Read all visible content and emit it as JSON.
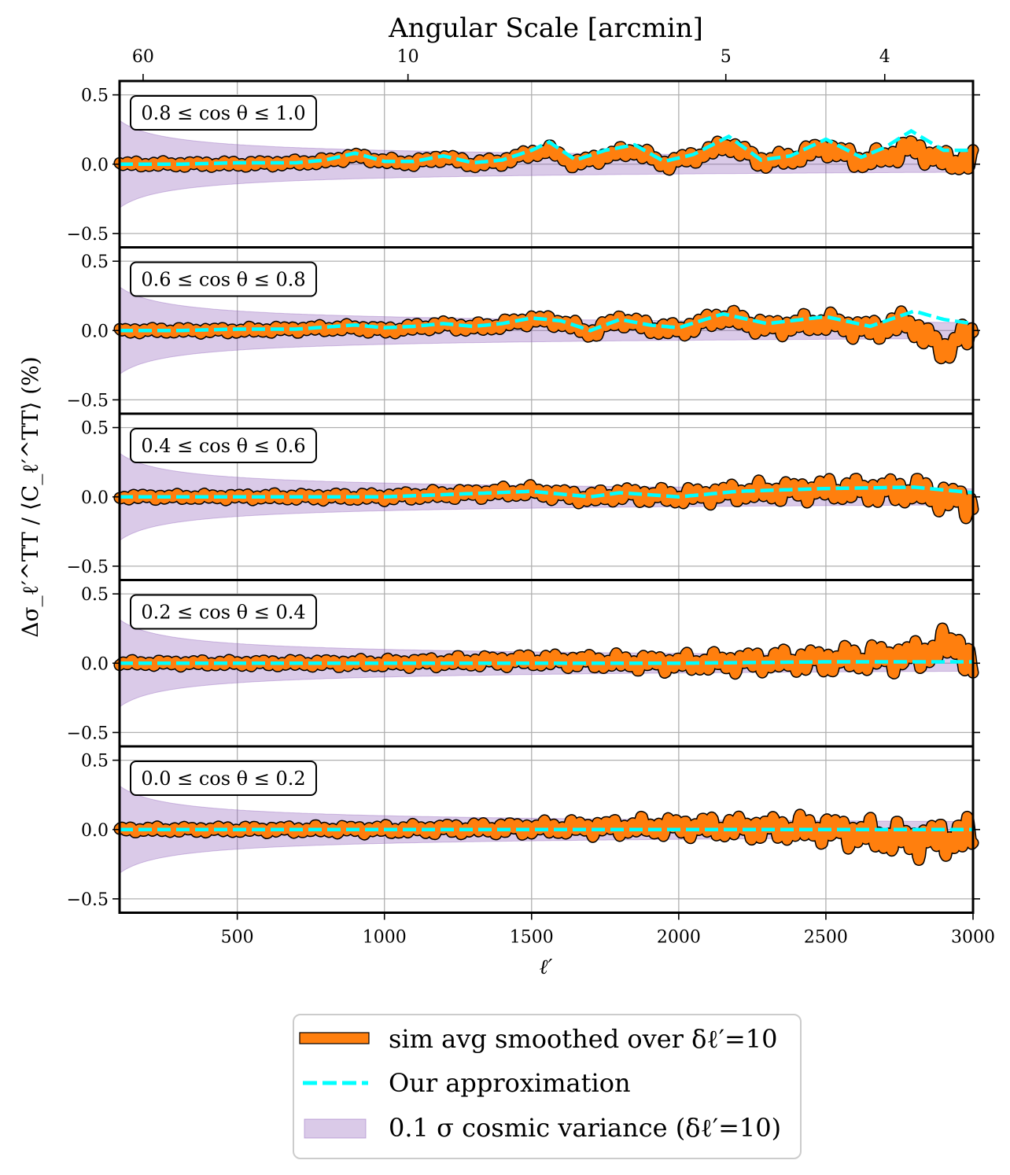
{
  "chart_data": {
    "type": "line",
    "top_axis": {
      "label": "Angular Scale [arcmin]",
      "ticks": [
        {
          "label": "60",
          "ell": 180
        },
        {
          "label": "10",
          "ell": 1080
        },
        {
          "label": "5",
          "ell": 2160
        },
        {
          "label": "4",
          "ell": 2700
        }
      ]
    },
    "xlabel": "ℓ′",
    "ylabel": "Δσ_ℓ′^TT / ⟨C_ℓ′^TT⟩ (%)",
    "xlim": [
      100,
      3000
    ],
    "ylim": [
      -0.6,
      0.6
    ],
    "xticks": [
      500,
      1000,
      1500,
      2000,
      2500,
      3000
    ],
    "yticks": [
      -0.5,
      0.0,
      0.5
    ],
    "ytick_labels": [
      "−0.5",
      "0.0",
      "0.5"
    ],
    "grid": true,
    "legend_position": "below",
    "legend": [
      {
        "label": "sim avg smoothed over δℓ′=10",
        "style": "band",
        "color": "#ff7f0e"
      },
      {
        "label": "Our approximation",
        "style": "dashed",
        "color": "#00ffff"
      },
      {
        "label": "0.1 σ cosmic variance (δℓ′=10)",
        "style": "fill",
        "color": "#9467bd"
      }
    ],
    "cosmic_variance_band": {
      "formula": "0.1*sqrt(2/((2l+1)*10))*100",
      "ell_start": 100,
      "ell_end": 3000
    },
    "panels": [
      {
        "label": "0.8 ≤ cos θ ≤ 1.0",
        "approx": {
          "ell": [
            100,
            300,
            500,
            700,
            800,
            900,
            1000,
            1100,
            1200,
            1300,
            1400,
            1500,
            1560,
            1650,
            1750,
            1850,
            1950,
            2050,
            2170,
            2280,
            2380,
            2500,
            2620,
            2700,
            2790,
            2900,
            3000
          ],
          "values": [
            0.0,
            0.0,
            0.01,
            0.01,
            0.03,
            0.08,
            0.02,
            0.02,
            0.06,
            0.01,
            0.03,
            0.1,
            0.16,
            0.03,
            0.1,
            0.14,
            0.02,
            0.07,
            0.2,
            0.03,
            0.06,
            0.18,
            0.05,
            0.12,
            0.24,
            0.1,
            0.1
          ]
        },
        "sim": {
          "ell": [
            100,
            300,
            500,
            700,
            800,
            900,
            1000,
            1100,
            1200,
            1300,
            1400,
            1500,
            1560,
            1650,
            1750,
            1850,
            1950,
            2050,
            2170,
            2280,
            2380,
            2500,
            2620,
            2700,
            2790,
            2900,
            3000
          ],
          "values": [
            0.0,
            0.0,
            0.0,
            0.01,
            0.02,
            0.06,
            0.02,
            0.01,
            0.05,
            0.0,
            0.02,
            0.08,
            0.1,
            0.0,
            0.06,
            0.1,
            0.0,
            0.05,
            0.14,
            0.02,
            0.04,
            0.12,
            0.02,
            0.05,
            0.12,
            0.02,
            0.02
          ]
        }
      },
      {
        "label": "0.6 ≤ cos θ ≤ 0.8",
        "approx": {
          "ell": [
            100,
            300,
            500,
            700,
            900,
            1000,
            1100,
            1200,
            1300,
            1400,
            1500,
            1600,
            1700,
            1800,
            1900,
            2000,
            2150,
            2300,
            2500,
            2650,
            2800,
            2900,
            3000
          ],
          "values": [
            0.0,
            0.0,
            0.01,
            0.01,
            0.04,
            0.02,
            0.03,
            0.05,
            0.03,
            0.05,
            0.09,
            0.07,
            0.0,
            0.08,
            0.04,
            0.02,
            0.12,
            0.05,
            0.1,
            0.03,
            0.14,
            0.08,
            0.05
          ]
        },
        "sim": {
          "ell": [
            100,
            300,
            500,
            700,
            900,
            1000,
            1100,
            1200,
            1300,
            1400,
            1500,
            1600,
            1700,
            1800,
            1900,
            2000,
            2150,
            2300,
            2500,
            2650,
            2780,
            2850,
            2900,
            2950,
            3000
          ],
          "values": [
            0.0,
            0.0,
            0.0,
            0.01,
            0.02,
            0.0,
            0.02,
            0.04,
            0.02,
            0.04,
            0.08,
            0.06,
            -0.02,
            0.08,
            0.02,
            0.0,
            0.1,
            0.02,
            0.06,
            0.0,
            0.06,
            -0.06,
            -0.15,
            -0.05,
            -0.05
          ]
        }
      },
      {
        "label": "0.4 ≤ cos θ ≤ 0.6",
        "approx": {
          "ell": [
            100,
            500,
            1000,
            1500,
            1700,
            1800,
            2000,
            2200,
            2500,
            2800,
            3000
          ],
          "values": [
            0.0,
            0.0,
            0.0,
            0.04,
            0.0,
            0.03,
            0.0,
            0.04,
            0.06,
            0.07,
            0.03
          ]
        },
        "sim": {
          "ell": [
            100,
            500,
            1000,
            1500,
            1700,
            1800,
            2000,
            2200,
            2500,
            2800,
            3000
          ],
          "values": [
            0.0,
            0.0,
            0.0,
            0.04,
            -0.01,
            0.02,
            0.0,
            0.03,
            0.05,
            0.04,
            -0.05
          ]
        }
      },
      {
        "label": "0.2 ≤ cos θ ≤ 0.4",
        "approx": {
          "ell": [
            100,
            1000,
            2000,
            2500,
            3000
          ],
          "values": [
            0.0,
            0.0,
            0.0,
            0.01,
            0.01
          ]
        },
        "sim": {
          "ell": [
            100,
            1000,
            1500,
            2000,
            2500,
            2800,
            2950,
            3000
          ],
          "values": [
            0.0,
            0.0,
            0.02,
            0.0,
            0.02,
            0.05,
            0.15,
            -0.05
          ]
        }
      },
      {
        "label": "0.0 ≤ cos θ ≤ 0.2",
        "approx": {
          "ell": [
            100,
            1000,
            2000,
            3000
          ],
          "values": [
            0.0,
            0.0,
            0.0,
            0.0
          ]
        },
        "sim": {
          "ell": [
            100,
            1000,
            2000,
            2500,
            2800,
            3000
          ],
          "values": [
            0.0,
            0.0,
            0.02,
            0.0,
            -0.08,
            -0.05
          ]
        }
      }
    ]
  }
}
